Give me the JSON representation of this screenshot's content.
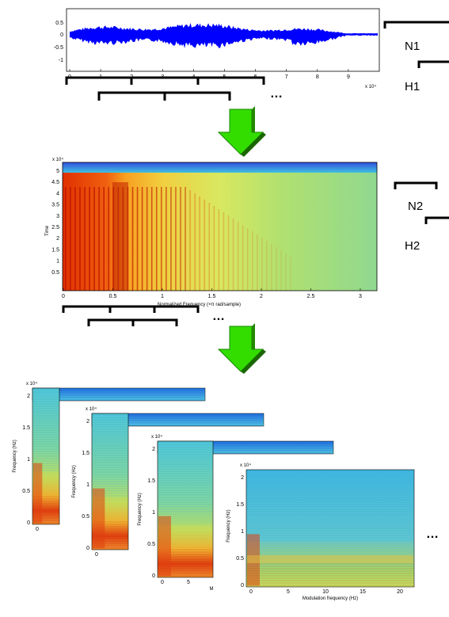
{
  "waveform": {
    "y_ticks": [
      "0.5",
      "0",
      "-0.5",
      "-1"
    ],
    "x_ticks": [
      "0",
      "1",
      "2",
      "3",
      "4",
      "5",
      "6",
      "7",
      "8",
      "9"
    ],
    "x_exponent": "x 10⁴",
    "color": "#0000ff"
  },
  "spectrogram": {
    "y_exponent": "x 10⁴",
    "y_label": "Time",
    "y_ticks": [
      "5",
      "4.5",
      "4",
      "3.5",
      "3",
      "2.5",
      "2",
      "1.5",
      "1",
      "0.5"
    ],
    "x_ticks": [
      "0",
      "0.5",
      "1",
      "1.5",
      "2",
      "2.5",
      "3"
    ],
    "x_label": "Normalized Frequency  (×π rad/sample)"
  },
  "labels": {
    "n1": "N1",
    "h1": "H1",
    "n2": "N2",
    "h2": "H2",
    "ellipsis": "…"
  },
  "modspec": {
    "exponent": "x 10⁴",
    "y_label": "Frequency (Hz)",
    "y_ticks": [
      "2",
      "1.5",
      "1",
      "0.5",
      "0"
    ],
    "panel1_x_ticks": [
      "0"
    ],
    "panel2_x_ticks": [
      "0"
    ],
    "panel3_x_ticks": [
      "0",
      "5"
    ],
    "panel3_x_label": "M",
    "panel4_x_ticks": [
      "0",
      "5",
      "10",
      "15",
      "20"
    ],
    "panel4_x_label": "Modulation frequency (Hz)"
  },
  "arrow_color": "#33dd00"
}
